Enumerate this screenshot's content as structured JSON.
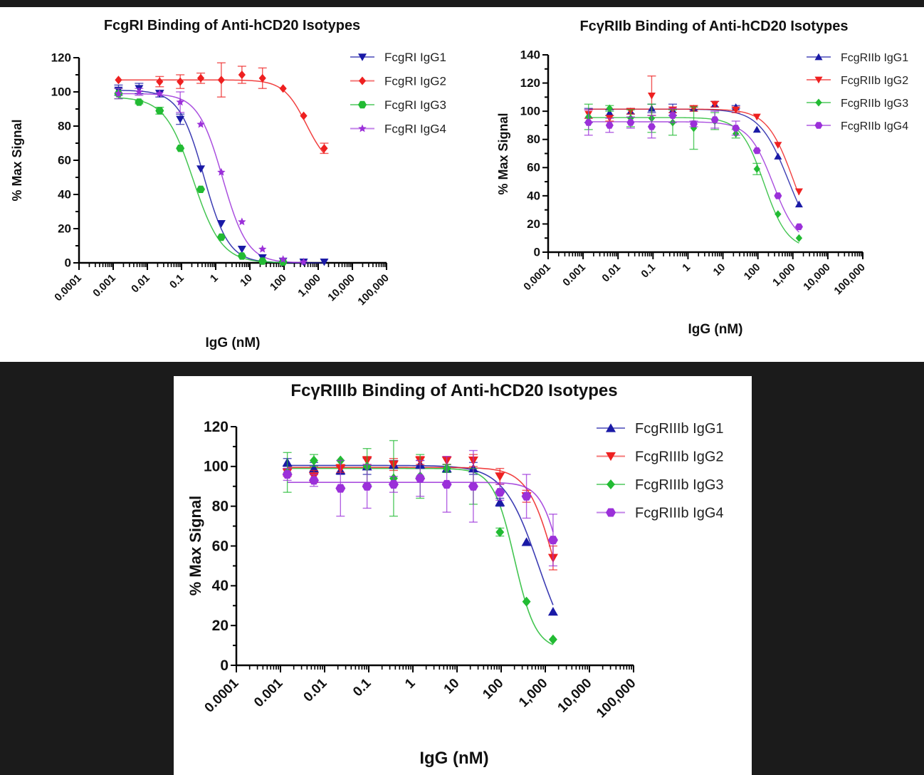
{
  "chart_data": [
    {
      "id": "fcgri",
      "type": "scatter",
      "title": "FcgRI Binding of Anti-hCD20 Isotypes",
      "xlabel": "IgG (nM)",
      "ylabel": "% Max Signal",
      "xscale": "log",
      "xlim": [
        0.0001,
        100000
      ],
      "ylim": [
        0,
        120
      ],
      "yticks": [
        0,
        20,
        40,
        60,
        80,
        100,
        120
      ],
      "xtick_values": [
        0.0001,
        0.001,
        0.01,
        0.1,
        1,
        10,
        100,
        1000,
        10000,
        100000
      ],
      "xtick_labels": [
        "0.0001",
        "0.001",
        "0.01",
        "0.1",
        "1",
        "10",
        "100",
        "1,000",
        "10,000",
        "100,000"
      ],
      "grid": false,
      "legend_position": "top-right",
      "fit": "four-parameter logistic",
      "series": [
        {
          "name": "FcgRI IgG1",
          "color": "#1a1aa6",
          "marker": "triangle-down",
          "x": [
            0.00143,
            0.00572,
            0.0229,
            0.0916,
            0.366,
            1.46,
            5.86,
            23.4,
            93.75,
            375,
            1500
          ],
          "y": [
            101,
            102,
            99,
            84,
            55,
            23,
            8,
            3,
            1,
            0.5,
            0.5
          ],
          "err": [
            3,
            3,
            2,
            3,
            0,
            0,
            0,
            0,
            0,
            0,
            0
          ],
          "fit": {
            "top": 101,
            "bottom": 0,
            "ec50": 0.45,
            "hill": 1.2
          }
        },
        {
          "name": "FcgRI IgG2",
          "color": "#ee2020",
          "marker": "diamond",
          "x": [
            0.00143,
            0.0229,
            0.0916,
            0.366,
            1.46,
            5.86,
            23.4,
            93.75,
            375,
            1500
          ],
          "y": [
            107,
            106,
            106,
            108,
            107,
            110,
            108,
            102,
            86,
            67
          ],
          "err": [
            0,
            3,
            4,
            3,
            10,
            5,
            6,
            0,
            0,
            3
          ],
          "fit": {
            "top": 107,
            "bottom": 55,
            "ec50": 450,
            "hill": 1.3
          }
        },
        {
          "name": "FcgRI IgG3",
          "color": "#22bb33",
          "marker": "circle",
          "x": [
            0.00143,
            0.00572,
            0.0229,
            0.0916,
            0.366,
            1.46,
            5.86,
            23.4,
            93.75
          ],
          "y": [
            99,
            94,
            89,
            67,
            43,
            15,
            4,
            1,
            0.5
          ],
          "err": [
            3,
            1,
            2,
            0,
            0,
            0,
            0,
            0,
            0
          ],
          "fit": {
            "top": 97,
            "bottom": 0,
            "ec50": 0.22,
            "hill": 1.05
          }
        },
        {
          "name": "FcgRI IgG4",
          "color": "#9b30d9",
          "marker": "star",
          "x": [
            0.00143,
            0.00572,
            0.0229,
            0.0916,
            0.366,
            1.46,
            5.86,
            23.4,
            93.75,
            375
          ],
          "y": [
            99,
            100,
            99,
            94,
            81,
            53,
            24,
            8,
            2,
            0.5
          ],
          "err": [
            3,
            2,
            0,
            6,
            0,
            0,
            0,
            0,
            0,
            0
          ],
          "fit": {
            "top": 99,
            "bottom": 0,
            "ec50": 1.6,
            "hill": 1.2
          }
        }
      ]
    },
    {
      "id": "fcgriib",
      "type": "scatter",
      "title": "FcγRIIb Binding of Anti-hCD20 Isotypes",
      "xlabel": "IgG (nM)",
      "ylabel": "% Max Signal",
      "xscale": "log",
      "xlim": [
        0.0001,
        100000
      ],
      "ylim": [
        0,
        140
      ],
      "yticks": [
        0,
        20,
        40,
        60,
        80,
        100,
        120,
        140
      ],
      "xtick_values": [
        0.0001,
        0.001,
        0.01,
        0.1,
        1,
        10,
        100,
        1000,
        10000,
        100000
      ],
      "xtick_labels": [
        "0.0001",
        "0.001",
        "0.01",
        "0.1",
        "1",
        "10",
        "100",
        "1,000",
        "10,000",
        "100,000"
      ],
      "grid": false,
      "legend_position": "top-right",
      "fit": "four-parameter logistic",
      "series": [
        {
          "name": "FcgRIIb IgG1",
          "color": "#1a1aa6",
          "marker": "triangle-up",
          "x": [
            0.00143,
            0.00572,
            0.0229,
            0.0916,
            0.366,
            1.46,
            5.86,
            23.4,
            93.75,
            375,
            1500
          ],
          "y": [
            97,
            99,
            100,
            102,
            101,
            102,
            105,
            103,
            87,
            68,
            34
          ],
          "err": [
            5,
            2,
            2,
            3,
            4,
            1,
            2,
            1,
            0,
            0,
            0
          ],
          "fit": {
            "top": 101.5,
            "bottom": 0,
            "ec50": 750,
            "hill": 1.05
          }
        },
        {
          "name": "FcgRIIb IgG2",
          "color": "#ee2020",
          "marker": "triangle-down",
          "x": [
            0.00143,
            0.00572,
            0.0229,
            0.0916,
            0.366,
            1.46,
            5.86,
            23.4,
            93.75,
            375,
            1500
          ],
          "y": [
            98,
            95,
            100,
            111,
            101,
            102,
            105,
            101,
            96,
            76,
            43
          ],
          "err": [
            3,
            2,
            2,
            14,
            2,
            2,
            2,
            2,
            0,
            0,
            0
          ],
          "fit": {
            "top": 101.5,
            "bottom": 0,
            "ec50": 1050,
            "hill": 1.15
          }
        },
        {
          "name": "FcgRIIb IgG3",
          "color": "#22bb33",
          "marker": "diamond",
          "x": [
            0.00143,
            0.00572,
            0.0229,
            0.0916,
            0.366,
            1.46,
            5.86,
            23.4,
            93.75,
            375,
            1500
          ],
          "y": [
            96,
            102,
            95,
            95,
            92,
            88,
            93,
            84,
            59,
            27,
            10
          ],
          "err": [
            9,
            2,
            6,
            10,
            9,
            15,
            6,
            3,
            4,
            0,
            0
          ],
          "fit": {
            "top": 95.5,
            "bottom": 2,
            "ec50": 150,
            "hill": 1.3
          }
        },
        {
          "name": "FcgRIIb IgG4",
          "color": "#9b30d9",
          "marker": "circle",
          "x": [
            0.00143,
            0.00572,
            0.0229,
            0.0916,
            0.366,
            1.46,
            5.86,
            23.4,
            93.75,
            375,
            1500
          ],
          "y": [
            92,
            90,
            92,
            89,
            97,
            91,
            94,
            88,
            72,
            40,
            18
          ],
          "err": [
            9,
            5,
            4,
            8,
            5,
            2,
            6,
            5,
            0,
            0,
            0
          ],
          "fit": {
            "top": 92.5,
            "bottom": 5,
            "ec50": 270,
            "hill": 1.25
          }
        }
      ]
    },
    {
      "id": "fcgriiib",
      "type": "scatter",
      "title": "FcγRIIIb Binding of Anti-hCD20 Isotypes",
      "xlabel": "IgG (nM)",
      "ylabel": "% Max Signal",
      "xscale": "log",
      "xlim": [
        0.0001,
        100000
      ],
      "ylim": [
        0,
        120
      ],
      "yticks": [
        0,
        20,
        40,
        60,
        80,
        100,
        120
      ],
      "xtick_values": [
        0.0001,
        0.001,
        0.01,
        0.1,
        1,
        10,
        100,
        1000,
        10000,
        100000
      ],
      "xtick_labels": [
        "0.0001",
        "0.001",
        "0.01",
        "0.1",
        "1",
        "10",
        "100",
        "1,000",
        "10,000",
        "100,000"
      ],
      "grid": false,
      "legend_position": "top-right",
      "fit": "four-parameter logistic",
      "series": [
        {
          "name": "FcgRIIIb IgG1",
          "color": "#1a1aa6",
          "marker": "triangle-up",
          "x": [
            0.00143,
            0.00572,
            0.0229,
            0.0916,
            0.366,
            1.46,
            5.86,
            23.4,
            93.75,
            375,
            1500
          ],
          "y": [
            102,
            99,
            98,
            100,
            101,
            101,
            99,
            99,
            82,
            62,
            27
          ],
          "err": [
            2,
            3,
            2,
            4,
            2,
            2,
            2,
            3,
            2,
            0,
            0
          ],
          "fit": {
            "top": 100.5,
            "bottom": 0,
            "ec50": 700,
            "hill": 1.1
          }
        },
        {
          "name": "FcgRIIIb IgG2",
          "color": "#ee2020",
          "marker": "triangle-down",
          "x": [
            0.00143,
            0.00572,
            0.0229,
            0.0916,
            0.366,
            1.46,
            5.86,
            23.4,
            93.75,
            375,
            1500
          ],
          "y": [
            97,
            95,
            99,
            103,
            101,
            103,
            103,
            103,
            95,
            85,
            54
          ],
          "err": [
            2,
            3,
            2,
            2,
            3,
            2,
            2,
            3,
            4,
            3,
            6
          ],
          "fit": {
            "top": 99.5,
            "bottom": 0,
            "ec50": 1700,
            "hill": 1.4
          }
        },
        {
          "name": "FcgRIIIb IgG3",
          "color": "#22bb33",
          "marker": "diamond",
          "x": [
            0.00143,
            0.00572,
            0.0229,
            0.0916,
            0.366,
            1.46,
            5.86,
            23.4,
            93.75,
            375,
            1500
          ],
          "y": [
            97,
            103,
            103,
            100,
            94,
            95,
            99,
            90,
            67,
            32,
            13
          ],
          "err": [
            10,
            3,
            0,
            9,
            19,
            11,
            2,
            9,
            2,
            0,
            0
          ],
          "fit": {
            "top": 99,
            "bottom": 8,
            "ec50": 200,
            "hill": 1.8
          }
        },
        {
          "name": "FcgRIIIb IgG4",
          "color": "#9b30d9",
          "marker": "circle",
          "x": [
            0.00143,
            0.00572,
            0.0229,
            0.0916,
            0.366,
            1.46,
            5.86,
            23.4,
            93.75,
            375,
            1500
          ],
          "y": [
            96,
            93,
            89,
            90,
            91,
            94,
            91,
            90,
            87,
            85,
            63
          ],
          "err": [
            3,
            3,
            14,
            11,
            4,
            9,
            14,
            18,
            4,
            11,
            13
          ],
          "fit": {
            "top": 92,
            "bottom": 0,
            "ec50": 2600,
            "hill": 1.8
          }
        }
      ]
    }
  ]
}
